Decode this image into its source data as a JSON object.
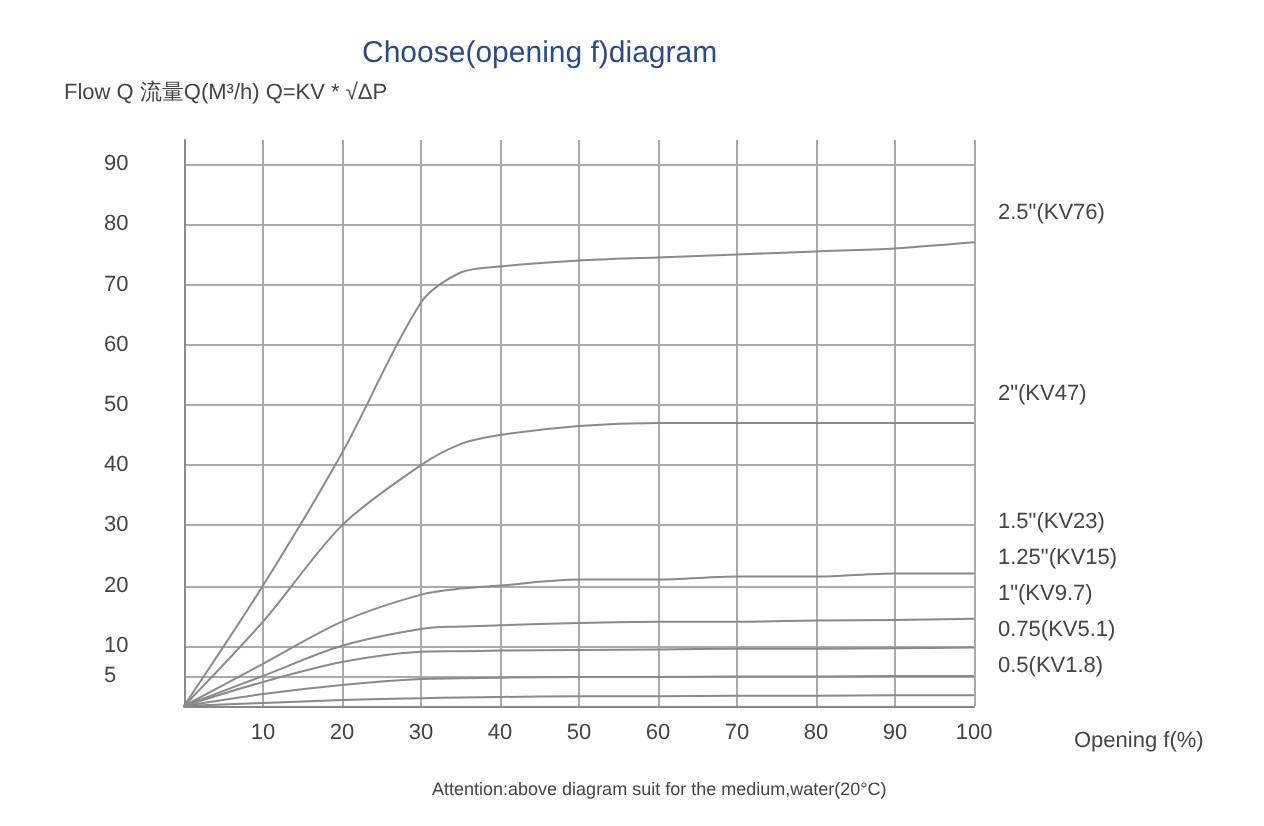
{
  "chart_data": {
    "type": "line",
    "title": "Choose(opening f)diagram",
    "xlabel": "Opening f(%)",
    "ylabel": "Flow Q 流量Q(M³/h) Q=KV * √ΔP",
    "annotations": [
      "Attention:above diagram suit for the medium,water(20°C)"
    ],
    "x": [
      0,
      10,
      20,
      30,
      35,
      40,
      50,
      60,
      70,
      80,
      90,
      100
    ],
    "series": [
      {
        "name": "2.5\"(KV76)",
        "color": "#8a8a8a",
        "values": [
          0,
          20,
          42,
          67,
          72,
          73,
          74,
          74.5,
          75,
          75.5,
          76,
          77
        ]
      },
      {
        "name": "2\"(KV47)",
        "color": "#8a8a8a",
        "values": [
          0,
          14,
          30,
          40,
          43.5,
          45,
          46.5,
          47,
          47,
          47,
          47,
          47
        ]
      },
      {
        "name": "1.5\"(KV23)",
        "color": "#8a8a8a",
        "values": [
          0,
          7,
          14,
          18.5,
          19.5,
          20,
          21,
          21,
          21.5,
          21.5,
          22,
          22
        ]
      },
      {
        "name": "1.25\"(KV15)",
        "color": "#8a8a8a",
        "values": [
          0,
          5,
          10,
          12.8,
          13.2,
          13.4,
          13.8,
          14,
          14,
          14.2,
          14.3,
          14.5
        ]
      },
      {
        "name": "1\"(KV9.7)",
        "color": "#8a8a8a",
        "values": [
          0,
          4,
          7.3,
          9,
          9.1,
          9.2,
          9.3,
          9.4,
          9.5,
          9.5,
          9.6,
          9.7
        ]
      },
      {
        "name": "0.75(KV5.1)",
        "color": "#8a8a8a",
        "values": [
          0,
          2,
          3.5,
          4.5,
          4.6,
          4.7,
          4.8,
          4.8,
          4.9,
          4.9,
          5,
          5
        ]
      },
      {
        "name": "0.5(KV1.8)",
        "color": "#8a8a8a",
        "values": [
          0,
          0.5,
          1,
          1.3,
          1.4,
          1.5,
          1.6,
          1.6,
          1.7,
          1.7,
          1.8,
          1.8
        ]
      }
    ],
    "xlim": [
      0,
      100
    ],
    "xticks": [
      10,
      20,
      30,
      40,
      50,
      60,
      70,
      80,
      90,
      100
    ],
    "ylim": [
      0,
      94
    ],
    "yticks": [
      5,
      10,
      20,
      30,
      40,
      50,
      60,
      70,
      80,
      90
    ],
    "grid": true,
    "legend": false,
    "marker": "none",
    "line_style": "solid"
  }
}
